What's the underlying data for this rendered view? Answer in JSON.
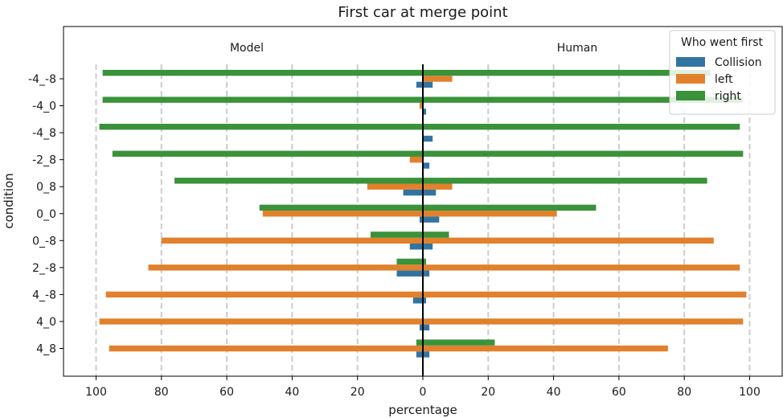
{
  "chart_data": {
    "type": "bar",
    "orientation": "horizontal",
    "title": "First car at merge point",
    "xlabel": "percentage",
    "ylabel": "condition",
    "xlim": [
      -100,
      100
    ],
    "x_ticks": [
      -100,
      -80,
      -60,
      -40,
      -20,
      0,
      20,
      40,
      60,
      80,
      100
    ],
    "x_tick_labels": [
      "100",
      "80",
      "60",
      "40",
      "20",
      "0",
      "20",
      "40",
      "60",
      "80",
      "100"
    ],
    "categories": [
      "-4_-8",
      "-4_0",
      "-4_8",
      "-2_8",
      "0_8",
      "0_0",
      "0_-8",
      "2_-8",
      "4_-8",
      "4_0",
      "4_8"
    ],
    "side_labels": {
      "left": "Model",
      "right": "Human"
    },
    "legend": {
      "title": "Who went first",
      "position": "top-right"
    },
    "grid": "vertical dashed at ticks",
    "series": [
      {
        "name": "Collision",
        "color": "#3274a1",
        "model": [
          2,
          0,
          0,
          0,
          6,
          1,
          4,
          8,
          3,
          1,
          2
        ],
        "human": [
          3,
          1,
          3,
          2,
          4,
          5,
          3,
          2,
          1,
          2,
          2
        ]
      },
      {
        "name": "left",
        "color": "#e1812c",
        "model": [
          0,
          1,
          0,
          4,
          17,
          49,
          80,
          84,
          97,
          99,
          96
        ],
        "human": [
          9,
          0,
          0,
          0,
          9,
          41,
          89,
          97,
          99,
          98,
          75
        ]
      },
      {
        "name": "right",
        "color": "#3a923a",
        "model": [
          98,
          98,
          99,
          95,
          76,
          50,
          16,
          8,
          0,
          0,
          2
        ],
        "human": [
          88,
          98,
          97,
          98,
          87,
          53,
          8,
          1,
          0,
          0,
          22
        ]
      }
    ]
  }
}
